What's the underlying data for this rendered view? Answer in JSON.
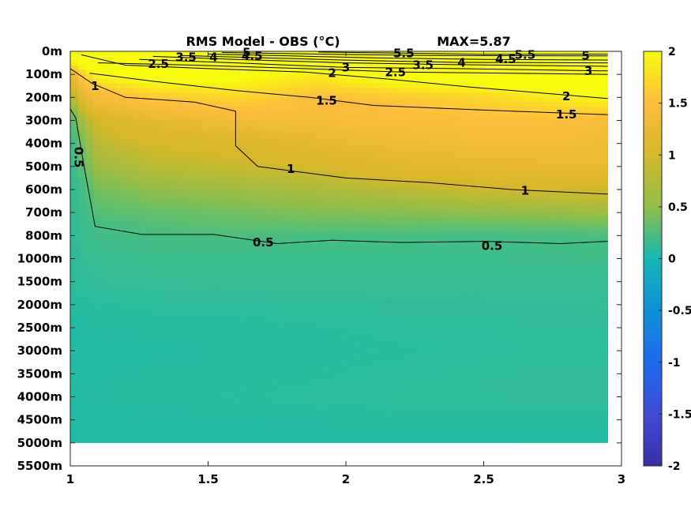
{
  "chart_data": {
    "type": "heatmap",
    "subtype": "filled-contour",
    "title": "RMS Model - OBS (°C)",
    "annotation": "MAX=5.87",
    "xlabel": "",
    "ylabel": "",
    "x_ticks": [
      "1",
      "1.5",
      "2",
      "2.5",
      "3"
    ],
    "xlim": [
      1,
      3
    ],
    "x_data_range": [
      1,
      2.95
    ],
    "y_ticks": [
      "0m",
      "100m",
      "200m",
      "300m",
      "400m",
      "500m",
      "600m",
      "700m",
      "800m",
      "1000m",
      "1500m",
      "2000m",
      "2500m",
      "3000m",
      "3500m",
      "4000m",
      "4500m",
      "5000m",
      "5500m"
    ],
    "y_data_range_levels": [
      0,
      17
    ],
    "colorbar": {
      "ticks": [
        "2",
        "1.5",
        "1",
        "0.5",
        "0",
        "-0.5",
        "-1",
        "-1.5",
        "-2"
      ],
      "clim": [
        -2,
        2
      ],
      "colormap": "parula"
    },
    "field": {
      "x": [
        1.0,
        1.05,
        1.1,
        1.3,
        1.6,
        1.9,
        2.2,
        2.5,
        2.8,
        2.95
      ],
      "level_index": [
        0,
        0.5,
        1,
        2,
        3,
        4,
        5,
        6,
        7,
        8,
        9,
        10,
        11,
        12,
        13,
        14,
        15,
        16,
        17
      ],
      "values": [
        [
          2.4,
          2.8,
          3.2,
          4.0,
          5.2,
          5.5,
          5.8,
          5.6,
          5.3,
          5.2
        ],
        [
          1.8,
          2.2,
          2.5,
          2.9,
          3.0,
          3.4,
          3.2,
          3.3,
          3.0,
          3.0
        ],
        [
          1.2,
          1.7,
          2.0,
          2.2,
          2.1,
          1.9,
          2.2,
          2.3,
          2.6,
          2.9
        ],
        [
          0.8,
          1.2,
          1.4,
          1.6,
          1.7,
          1.5,
          1.6,
          1.7,
          1.9,
          2.0
        ],
        [
          0.5,
          0.85,
          1.0,
          1.2,
          1.35,
          1.4,
          1.45,
          1.5,
          1.5,
          1.45
        ],
        [
          0.4,
          0.7,
          0.9,
          1.0,
          1.05,
          1.2,
          1.3,
          1.35,
          1.35,
          1.3
        ],
        [
          0.35,
          0.6,
          0.8,
          0.9,
          0.95,
          1.0,
          1.15,
          1.2,
          1.25,
          1.25
        ],
        [
          0.3,
          0.5,
          0.65,
          0.75,
          0.8,
          0.85,
          0.9,
          0.97,
          1.0,
          1.0
        ],
        [
          0.28,
          0.45,
          0.55,
          0.6,
          0.65,
          0.7,
          0.72,
          0.75,
          0.78,
          0.8
        ],
        [
          0.25,
          0.38,
          0.45,
          0.5,
          0.52,
          0.5,
          0.5,
          0.48,
          0.5,
          0.52
        ],
        [
          0.24,
          0.3,
          0.35,
          0.4,
          0.4,
          0.4,
          0.4,
          0.4,
          0.42,
          0.42
        ],
        [
          0.24,
          0.27,
          0.3,
          0.32,
          0.33,
          0.33,
          0.34,
          0.34,
          0.35,
          0.35
        ],
        [
          0.18,
          0.2,
          0.22,
          0.24,
          0.25,
          0.27,
          0.28,
          0.29,
          0.29,
          0.3
        ],
        [
          0.16,
          0.17,
          0.18,
          0.19,
          0.2,
          0.22,
          0.24,
          0.25,
          0.26,
          0.27
        ],
        [
          0.16,
          0.16,
          0.17,
          0.17,
          0.18,
          0.2,
          0.22,
          0.24,
          0.25,
          0.25
        ],
        [
          0.17,
          0.17,
          0.17,
          0.19,
          0.2,
          0.22,
          0.24,
          0.26,
          0.28,
          0.28
        ],
        [
          0.17,
          0.18,
          0.18,
          0.2,
          0.22,
          0.24,
          0.26,
          0.27,
          0.28,
          0.28
        ],
        [
          0.16,
          0.16,
          0.16,
          0.17,
          0.18,
          0.19,
          0.2,
          0.2,
          0.2,
          0.2
        ],
        [
          0.15,
          0.15,
          0.15,
          0.15,
          0.15,
          0.16,
          0.16,
          0.16,
          0.17,
          0.17
        ]
      ]
    },
    "contours": [
      {
        "level": "0.5",
        "label_positions": [
          {
            "x": 1.03,
            "lev": 4.6,
            "rotate": 90
          },
          {
            "x": 1.7,
            "lev": 8.3
          },
          {
            "x": 2.53,
            "lev": 8.45
          }
        ],
        "path": [
          [
            1.0,
            2.5
          ],
          [
            1.02,
            2.9
          ],
          [
            1.05,
            5.0
          ],
          [
            1.09,
            7.6
          ],
          [
            1.26,
            7.95
          ],
          [
            1.52,
            7.95
          ],
          [
            1.75,
            8.35
          ],
          [
            1.95,
            8.2
          ],
          [
            2.2,
            8.3
          ],
          [
            2.5,
            8.25
          ],
          [
            2.78,
            8.35
          ],
          [
            2.95,
            8.25
          ]
        ]
      },
      {
        "level": "1",
        "label_positions": [
          {
            "x": 1.09,
            "lev": 1.5
          },
          {
            "x": 1.8,
            "lev": 5.1
          },
          {
            "x": 2.65,
            "lev": 6.05
          }
        ],
        "path": [
          [
            1.0,
            0.75
          ],
          [
            1.08,
            1.4
          ],
          [
            1.2,
            2.0
          ],
          [
            1.45,
            2.2
          ],
          [
            1.6,
            2.6
          ],
          [
            1.6,
            4.1
          ],
          [
            1.68,
            5.0
          ],
          [
            2.0,
            5.5
          ],
          [
            2.3,
            5.7
          ],
          [
            2.6,
            6.0
          ],
          [
            2.95,
            6.2
          ]
        ]
      },
      {
        "level": "1.5",
        "label_positions": [
          {
            "x": 1.93,
            "lev": 2.15
          },
          {
            "x": 2.8,
            "lev": 2.75
          }
        ],
        "path": [
          [
            1.07,
            0.95
          ],
          [
            1.3,
            1.3
          ],
          [
            1.6,
            1.7
          ],
          [
            1.87,
            2.0
          ],
          [
            2.1,
            2.35
          ],
          [
            2.5,
            2.55
          ],
          [
            2.95,
            2.75
          ]
        ]
      },
      {
        "level": "2",
        "label_positions": [
          {
            "x": 1.95,
            "lev": 0.95
          },
          {
            "x": 2.8,
            "lev": 1.95
          }
        ],
        "path": [
          [
            1.04,
            0.15
          ],
          [
            1.2,
            0.6
          ],
          [
            1.5,
            0.75
          ],
          [
            1.85,
            0.9
          ],
          [
            2.15,
            1.2
          ],
          [
            2.45,
            1.55
          ],
          [
            2.95,
            2.05
          ]
        ]
      },
      {
        "level": "2.5",
        "label_positions": [
          {
            "x": 1.32,
            "lev": 0.55
          },
          {
            "x": 2.18,
            "lev": 0.9
          }
        ],
        "path": [
          [
            1.1,
            0.5
          ],
          [
            1.45,
            0.6
          ],
          [
            1.85,
            0.75
          ],
          [
            2.2,
            0.9
          ],
          [
            2.6,
            0.95
          ],
          [
            2.95,
            1.0
          ]
        ]
      },
      {
        "level": "3",
        "label_positions": [
          {
            "x": 2.0,
            "lev": 0.7
          },
          {
            "x": 2.88,
            "lev": 0.85
          }
        ],
        "path": [
          [
            1.25,
            0.35
          ],
          [
            1.6,
            0.5
          ],
          [
            2.0,
            0.7
          ],
          [
            2.4,
            0.75
          ],
          [
            2.95,
            0.85
          ]
        ]
      },
      {
        "level": "3.5",
        "label_positions": [
          {
            "x": 1.42,
            "lev": 0.25
          },
          {
            "x": 2.28,
            "lev": 0.6
          }
        ],
        "path": [
          [
            1.3,
            0.22
          ],
          [
            1.6,
            0.35
          ],
          [
            2.0,
            0.5
          ],
          [
            2.4,
            0.58
          ],
          [
            2.95,
            0.65
          ]
        ]
      },
      {
        "level": "4",
        "label_positions": [
          {
            "x": 1.52,
            "lev": 0.25
          },
          {
            "x": 2.42,
            "lev": 0.5
          }
        ],
        "path": [
          [
            1.4,
            0.18
          ],
          [
            1.7,
            0.28
          ],
          [
            2.0,
            0.38
          ],
          [
            2.4,
            0.48
          ],
          [
            2.95,
            0.5
          ]
        ]
      },
      {
        "level": "4.5",
        "label_positions": [
          {
            "x": 1.66,
            "lev": 0.2
          },
          {
            "x": 2.58,
            "lev": 0.35
          }
        ],
        "path": [
          [
            1.5,
            0.12
          ],
          [
            1.8,
            0.2
          ],
          [
            2.1,
            0.28
          ],
          [
            2.5,
            0.35
          ],
          [
            2.95,
            0.38
          ]
        ]
      },
      {
        "level": "5",
        "label_positions": [
          {
            "x": 1.64,
            "lev": 0.05
          },
          {
            "x": 2.87,
            "lev": 0.18
          }
        ],
        "path": [
          [
            1.55,
            0.05
          ],
          [
            1.9,
            0.12
          ],
          [
            2.3,
            0.18
          ],
          [
            2.95,
            0.2
          ]
        ]
      },
      {
        "level": "5.5",
        "label_positions": [
          {
            "x": 2.21,
            "lev": 0.08
          },
          {
            "x": 2.65,
            "lev": 0.15
          }
        ],
        "path": [
          [
            1.9,
            0.03
          ],
          [
            2.2,
            0.08
          ],
          [
            2.5,
            0.13
          ],
          [
            2.95,
            0.12
          ]
        ]
      }
    ]
  }
}
